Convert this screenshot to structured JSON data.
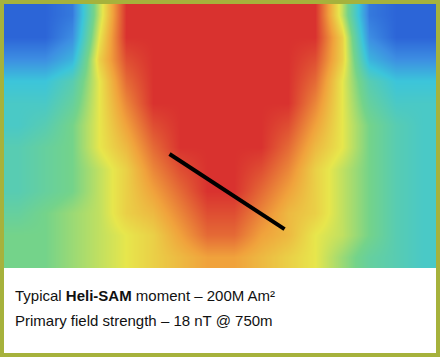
{
  "chart_data": {
    "type": "heatmap",
    "z": [
      [
        0.5,
        0.5,
        1,
        6,
        10,
        10,
        10,
        10,
        10,
        10,
        10,
        10,
        6,
        1,
        0.5,
        0.5
      ],
      [
        0.5,
        0.5,
        1.5,
        6.5,
        10,
        10,
        10,
        10,
        10,
        10,
        10,
        10,
        7,
        1.5,
        0.5,
        0.5
      ],
      [
        1.5,
        1.5,
        2.5,
        7,
        9.5,
        10,
        10,
        10,
        10,
        10,
        10,
        9.5,
        7,
        2.5,
        1.5,
        1.5
      ],
      [
        3,
        3,
        4,
        6.5,
        9,
        10,
        10,
        10,
        10,
        10,
        10,
        9,
        6.5,
        4,
        3,
        3
      ],
      [
        3.5,
        3.5,
        4.5,
        6.5,
        8.5,
        10,
        10,
        10,
        10,
        10,
        10,
        8.5,
        6.5,
        4.5,
        3.5,
        3.5
      ],
      [
        3.5,
        4,
        5,
        6.5,
        8,
        9.5,
        10,
        10,
        10,
        10,
        9.5,
        8,
        6.5,
        5,
        4,
        3.5
      ],
      [
        4,
        4.5,
        5,
        6.5,
        7.5,
        9,
        10,
        10,
        10,
        10,
        9,
        7.5,
        6.5,
        5,
        4,
        3.5
      ],
      [
        4,
        4.5,
        5,
        6,
        7,
        8.5,
        9.5,
        10,
        10,
        9.5,
        8.5,
        7,
        6,
        5,
        4,
        3.5
      ],
      [
        4,
        4.5,
        5,
        6,
        7,
        8,
        9,
        10,
        10,
        9,
        8,
        7,
        6,
        5,
        4,
        3.5
      ],
      [
        4.5,
        5,
        5.5,
        6,
        7,
        7.5,
        8.5,
        9.5,
        9.5,
        8.5,
        7.5,
        7,
        6,
        5,
        4,
        3.5
      ],
      [
        5,
        5,
        5.5,
        6,
        6.5,
        7,
        8,
        9,
        9,
        8,
        7.5,
        6.5,
        6,
        5,
        4,
        3.5
      ],
      [
        5,
        5,
        5.5,
        6,
        6.5,
        7,
        7.5,
        8,
        8,
        7.5,
        7,
        6.5,
        5.5,
        4.5,
        4,
        3.5
      ]
    ],
    "zlim": [
      0,
      10
    ],
    "tick_labels": false,
    "line": {
      "x": [
        5.63,
        9.89
      ],
      "y": [
        6.32,
        9.73
      ],
      "color": "#000000"
    },
    "annotations": [
      [
        {
          "text": "Typical "
        },
        {
          "text": "Heli-SAM",
          "bold": true
        },
        {
          "text": " moment – 200M Am²"
        }
      ],
      [
        {
          "text": "Primary field strength – 18 nT @ 750m"
        }
      ]
    ]
  }
}
